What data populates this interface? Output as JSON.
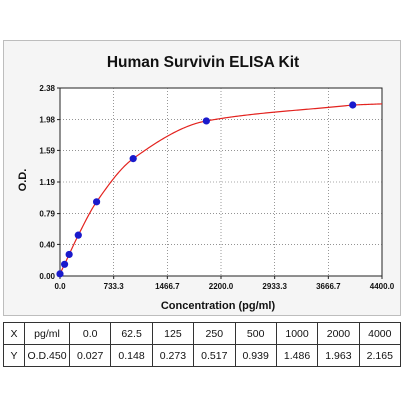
{
  "chart_data": {
    "type": "scatter",
    "title": "Human Survivin ELISA Kit",
    "xlabel": "Concentration (pg/ml)",
    "ylabel": "O.D.",
    "xlim": [
      0,
      4400
    ],
    "ylim": [
      0.0,
      2.38
    ],
    "xticks": [
      "0.0",
      "733.3",
      "1466.7",
      "2200.0",
      "2933.3",
      "3666.7",
      "4400.0"
    ],
    "xtick_values": [
      0,
      733.3,
      1466.7,
      2200,
      2933.3,
      3666.7,
      4400
    ],
    "yticks": [
      "0.00",
      "0.40",
      "0.79",
      "1.19",
      "1.59",
      "1.98",
      "2.38"
    ],
    "ytick_values": [
      0.0,
      0.4,
      0.79,
      1.19,
      1.59,
      1.98,
      2.38
    ],
    "grid": "dotted",
    "x": [
      0,
      62.5,
      125,
      250,
      500,
      1000,
      2000,
      4000
    ],
    "y": [
      0.027,
      0.148,
      0.273,
      0.517,
      0.939,
      1.486,
      1.963,
      2.165
    ],
    "colors": {
      "points": "#1a1acc",
      "curve": "#e3231f",
      "background": "#f5f5f5"
    }
  },
  "table": {
    "rows": [
      {
        "label": "X",
        "unit": "pg/ml",
        "values": [
          "0.0",
          "62.5",
          "125",
          "250",
          "500",
          "1000",
          "2000",
          "4000"
        ]
      },
      {
        "label": "Y",
        "unit": "O.D.450",
        "values": [
          "0.027",
          "0.148",
          "0.273",
          "0.517",
          "0.939",
          "1.486",
          "1.963",
          "2.165"
        ]
      }
    ]
  }
}
